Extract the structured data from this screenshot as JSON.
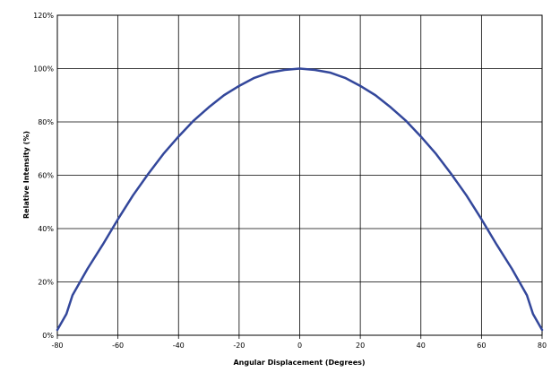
{
  "chart_data": {
    "type": "line",
    "xlabel": "Angular Displacement (Degrees)",
    "ylabel": "Relative Intensity (%)",
    "xlim": [
      -80,
      80
    ],
    "ylim": [
      0,
      120
    ],
    "x_ticks": [
      -80,
      -60,
      -40,
      -20,
      0,
      20,
      40,
      60,
      80
    ],
    "y_ticks": [
      "0%",
      "20%",
      "40%",
      "60%",
      "80%",
      "100%",
      "120%"
    ],
    "grid": true,
    "legend": "none",
    "series": [
      {
        "color": "#33479b",
        "x": [
          -80,
          -77,
          -75,
          -72,
          -70,
          -65,
          -60,
          -55,
          -50,
          -45,
          -40,
          -35,
          -30,
          -25,
          -20,
          -15,
          -10,
          -5,
          0,
          5,
          10,
          15,
          20,
          25,
          30,
          35,
          40,
          45,
          50,
          55,
          60,
          65,
          70,
          72,
          75,
          77,
          80
        ],
        "y": [
          2,
          8,
          15,
          21,
          25,
          34,
          43.5,
          52.5,
          60.5,
          68,
          74.5,
          80.5,
          85.5,
          90,
          93.5,
          96.5,
          98.5,
          99.5,
          100,
          99.5,
          98.5,
          96.5,
          93.5,
          90,
          85.5,
          80.5,
          74.5,
          68,
          60.5,
          52.5,
          43.5,
          34,
          25,
          21,
          15,
          8,
          2
        ]
      }
    ]
  }
}
